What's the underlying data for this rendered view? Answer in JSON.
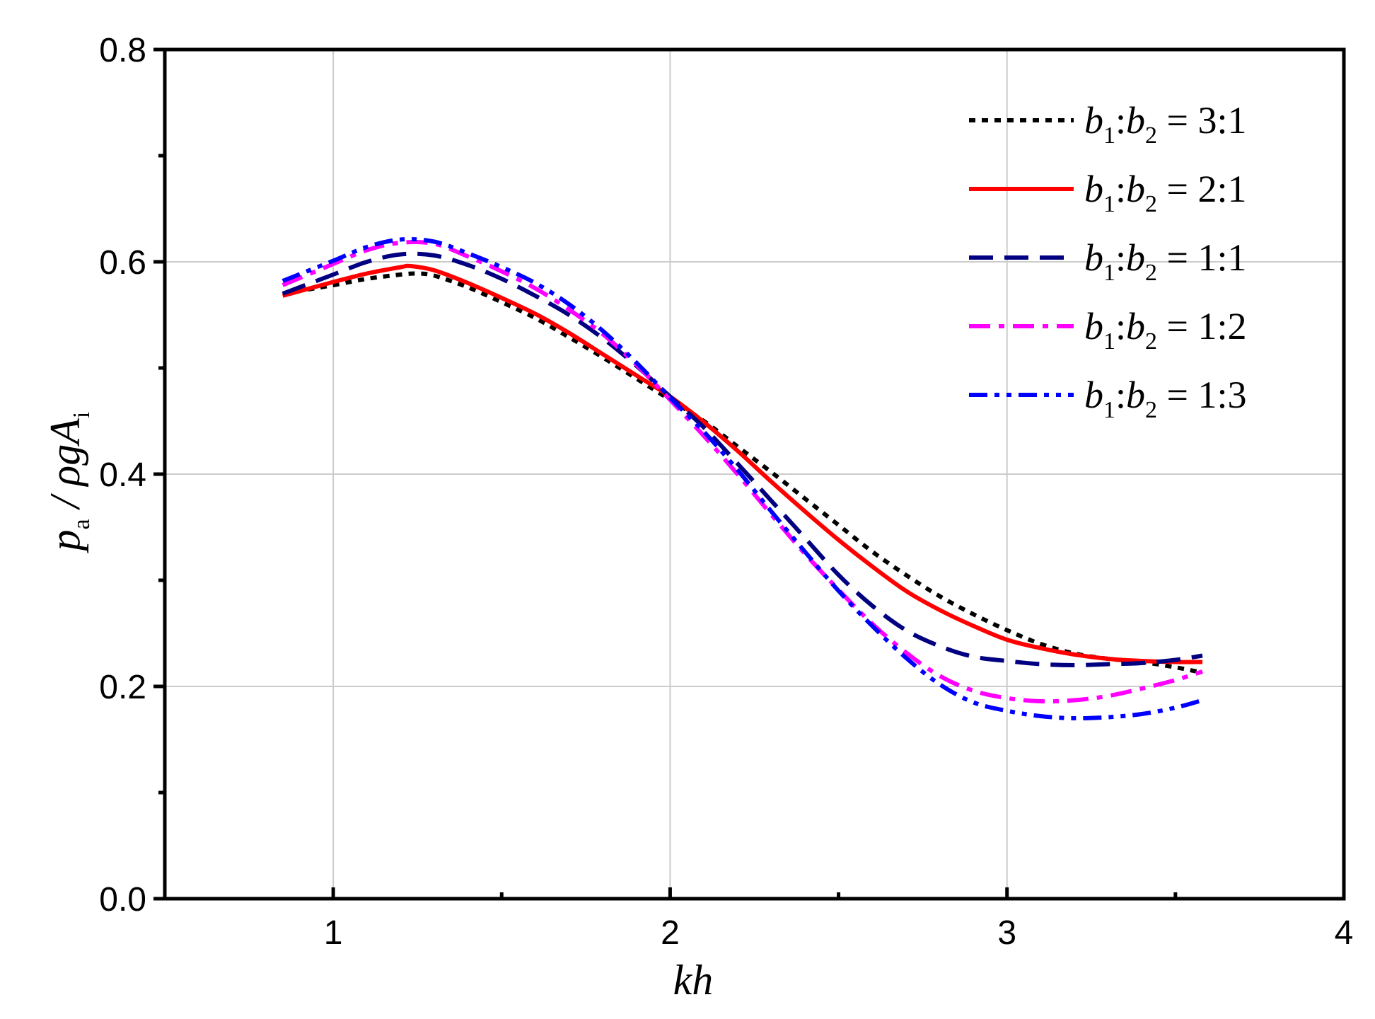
{
  "chart_data": {
    "type": "line",
    "xlabel": "kh",
    "ylabel": {
      "main": "p",
      "sub_a": "a",
      "mid": " / ρgA",
      "sub_i": "i"
    },
    "xlim": [
      0.5,
      4
    ],
    "ylim": [
      0.0,
      0.8
    ],
    "x_ticks": [
      "1",
      "2",
      "3",
      "4"
    ],
    "y_ticks": [
      "0.0",
      "0.2",
      "0.4",
      "0.6",
      "0.8"
    ],
    "grid": true,
    "legend_position": "top-right",
    "series": [
      {
        "name": "b1:b2 = 3:1",
        "legend": {
          "b": "b",
          "s1": "1",
          "colon": ":",
          "s2": "2",
          "ratio": " = 3:1"
        },
        "color": "#000000",
        "dash": "dot",
        "x": [
          0.85,
          1.0,
          1.1,
          1.2,
          1.25,
          1.3,
          1.4,
          1.5,
          1.6,
          1.7,
          1.8,
          1.9,
          2.0,
          2.1,
          2.2,
          2.3,
          2.4,
          2.5,
          2.6,
          2.7,
          2.8,
          2.9,
          3.0,
          3.1,
          3.2,
          3.3,
          3.4,
          3.5,
          3.58
        ],
        "y": [
          0.57,
          0.578,
          0.584,
          0.588,
          0.589,
          0.587,
          0.576,
          0.562,
          0.547,
          0.529,
          0.51,
          0.49,
          0.47,
          0.45,
          0.426,
          0.402,
          0.377,
          0.352,
          0.327,
          0.305,
          0.285,
          0.268,
          0.253,
          0.24,
          0.231,
          0.226,
          0.223,
          0.218,
          0.213
        ]
      },
      {
        "name": "b1:b2 = 2:1",
        "legend": {
          "b": "b",
          "s1": "1",
          "colon": ":",
          "s2": "2",
          "ratio": " = 2:1"
        },
        "color": "#ff0000",
        "dash": "solid",
        "x": [
          0.85,
          1.0,
          1.1,
          1.2,
          1.23,
          1.3,
          1.4,
          1.5,
          1.6,
          1.7,
          1.8,
          1.9,
          2.0,
          2.1,
          2.2,
          2.3,
          2.4,
          2.5,
          2.6,
          2.7,
          2.8,
          2.9,
          3.0,
          3.1,
          3.2,
          3.3,
          3.4,
          3.5,
          3.58
        ],
        "y": [
          0.568,
          0.581,
          0.589,
          0.595,
          0.596,
          0.592,
          0.58,
          0.566,
          0.551,
          0.533,
          0.513,
          0.493,
          0.473,
          0.449,
          0.422,
          0.393,
          0.365,
          0.338,
          0.313,
          0.29,
          0.272,
          0.257,
          0.244,
          0.236,
          0.23,
          0.226,
          0.224,
          0.223,
          0.223
        ]
      },
      {
        "name": "b1:b2 = 1:1",
        "legend": {
          "b": "b",
          "s1": "1",
          "colon": ":",
          "s2": "2",
          "ratio": " = 1:1"
        },
        "color": "#000080",
        "dash": "dash",
        "x": [
          0.85,
          1.0,
          1.1,
          1.2,
          1.3,
          1.4,
          1.5,
          1.6,
          1.7,
          1.8,
          1.9,
          2.0,
          2.1,
          2.2,
          2.3,
          2.4,
          2.5,
          2.6,
          2.7,
          2.8,
          2.9,
          3.0,
          3.1,
          3.2,
          3.3,
          3.4,
          3.5,
          3.58
        ],
        "y": [
          0.57,
          0.588,
          0.6,
          0.607,
          0.606,
          0.597,
          0.584,
          0.568,
          0.55,
          0.528,
          0.502,
          0.473,
          0.444,
          0.41,
          0.375,
          0.34,
          0.305,
          0.276,
          0.253,
          0.238,
          0.228,
          0.224,
          0.221,
          0.22,
          0.221,
          0.222,
          0.225,
          0.229
        ]
      },
      {
        "name": "b1:b2 = 1:2",
        "legend": {
          "b": "b",
          "s1": "1",
          "colon": ":",
          "s2": "2",
          "ratio": " = 1:2"
        },
        "color": "#ff00ff",
        "dash": "dashdot",
        "x": [
          0.85,
          1.0,
          1.1,
          1.2,
          1.3,
          1.4,
          1.5,
          1.6,
          1.7,
          1.8,
          1.9,
          2.0,
          2.1,
          2.2,
          2.3,
          2.4,
          2.5,
          2.6,
          2.7,
          2.8,
          2.9,
          3.0,
          3.1,
          3.2,
          3.3,
          3.4,
          3.5,
          3.58
        ],
        "y": [
          0.578,
          0.598,
          0.611,
          0.618,
          0.617,
          0.605,
          0.591,
          0.575,
          0.555,
          0.532,
          0.503,
          0.47,
          0.436,
          0.4,
          0.362,
          0.325,
          0.291,
          0.259,
          0.232,
          0.21,
          0.196,
          0.189,
          0.186,
          0.187,
          0.191,
          0.198,
          0.206,
          0.214
        ]
      },
      {
        "name": "b1:b2 = 1:3",
        "legend": {
          "b": "b",
          "s1": "1",
          "colon": ":",
          "s2": "2",
          "ratio": " = 1:3"
        },
        "color": "#0000ff",
        "dash": "dashdotdot",
        "x": [
          0.85,
          1.0,
          1.1,
          1.2,
          1.3,
          1.4,
          1.5,
          1.6,
          1.7,
          1.8,
          1.9,
          2.0,
          2.1,
          2.2,
          2.3,
          2.4,
          2.5,
          2.6,
          2.7,
          2.8,
          2.9,
          3.0,
          3.1,
          3.2,
          3.3,
          3.4,
          3.5,
          3.58
        ],
        "y": [
          0.582,
          0.601,
          0.614,
          0.621,
          0.619,
          0.608,
          0.595,
          0.58,
          0.56,
          0.535,
          0.505,
          0.472,
          0.44,
          0.404,
          0.365,
          0.327,
          0.29,
          0.257,
          0.227,
          0.202,
          0.185,
          0.177,
          0.172,
          0.17,
          0.171,
          0.174,
          0.18,
          0.187
        ]
      }
    ]
  }
}
